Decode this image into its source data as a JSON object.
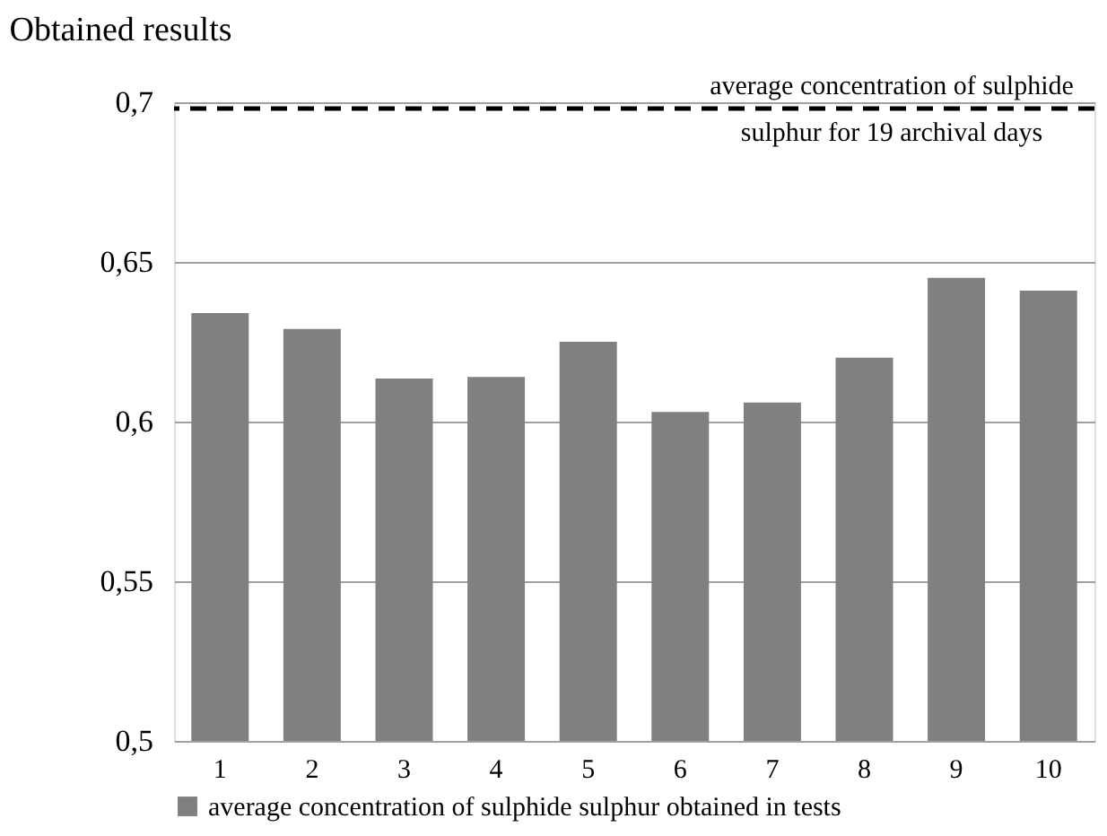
{
  "chart_data": {
    "type": "bar",
    "title": "Obtained results",
    "categories": [
      "1",
      "2",
      "3",
      "4",
      "5",
      "6",
      "7",
      "8",
      "9",
      "10"
    ],
    "series": [
      {
        "name": "average concentration of sulphide sulphur obtained in tests",
        "color": "#808080",
        "values": [
          0.634,
          0.629,
          0.6135,
          0.614,
          0.625,
          0.603,
          0.606,
          0.62,
          0.645,
          0.641
        ]
      }
    ],
    "ylim": [
      0.5,
      0.7
    ],
    "yticks": [
      {
        "value": 0.5,
        "label": "0,5"
      },
      {
        "value": 0.55,
        "label": "0,55"
      },
      {
        "value": 0.6,
        "label": "0,6"
      },
      {
        "value": 0.65,
        "label": "0,65"
      },
      {
        "value": 0.7,
        "label": "0,7"
      }
    ],
    "ref_lines": [
      {
        "axis": "y",
        "value": 0.698,
        "label": "average concentration of sulphide sulphur for 19 archival days",
        "color": "#000000",
        "line_style": "dashed"
      }
    ],
    "grid": "y",
    "legend": "bottom"
  }
}
